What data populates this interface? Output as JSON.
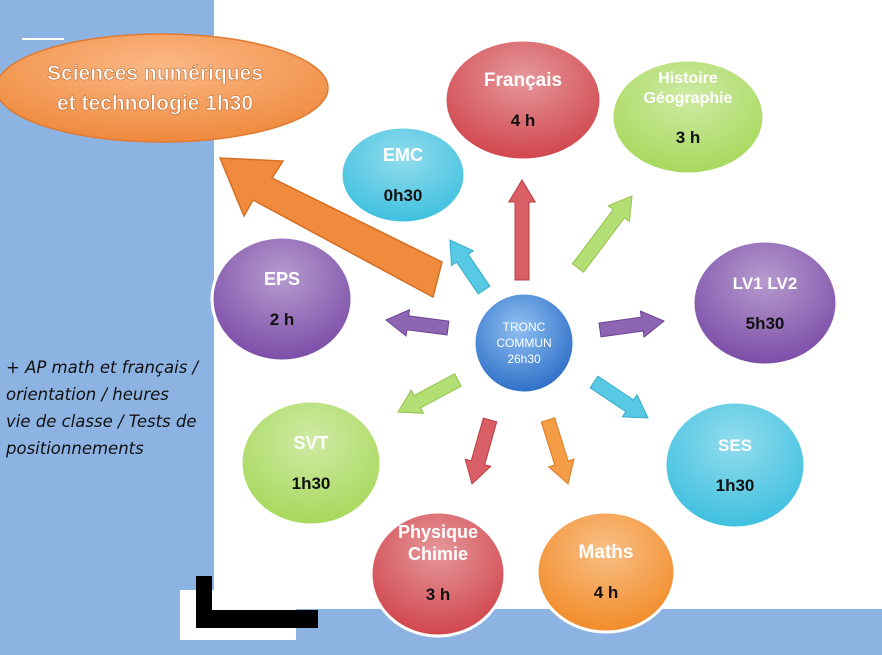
{
  "callout": {
    "line1": "Sciences numériques",
    "line2": "et technologie 1h30"
  },
  "center": {
    "line1": "TRONC",
    "line2": "COMMUN",
    "line3": "26h30"
  },
  "subjects": [
    {
      "id": "francais",
      "name_lines": [
        "Français"
      ],
      "hours": "4 h",
      "color": "#d0434a"
    },
    {
      "id": "histoire-geographie",
      "name_lines": [
        "Histoire",
        "Géographie"
      ],
      "hours": "3 h",
      "color": "#a6d85a"
    },
    {
      "id": "lv1-lv2",
      "name_lines": [
        "LV1 LV2"
      ],
      "hours": "5h30",
      "color": "#7a4aa6"
    },
    {
      "id": "ses",
      "name_lines": [
        "SES"
      ],
      "hours": "1h30",
      "color": "#3bbfdf"
    },
    {
      "id": "maths",
      "name_lines": [
        "Maths"
      ],
      "hours": "4 h",
      "color": "#f28a25"
    },
    {
      "id": "physique-chimie",
      "name_lines": [
        "Physique",
        "Chimie"
      ],
      "hours": "3 h",
      "color": "#d0434a"
    },
    {
      "id": "svt",
      "name_lines": [
        "SVT"
      ],
      "hours": "1h30",
      "color": "#a6d85a"
    },
    {
      "id": "eps",
      "name_lines": [
        "EPS"
      ],
      "hours": "2 h",
      "color": "#7a4aa6"
    },
    {
      "id": "emc",
      "name_lines": [
        "EMC"
      ],
      "hours": "0h30",
      "color": "#3bbfdf"
    }
  ],
  "side_note": "+ AP math et français /\norientation / heures\nvie de classe / Tests de\npositionnements",
  "colors": {
    "panel": "#8db3e2",
    "callout": "#f5a05c",
    "callout_arrow": "#f08a3c",
    "center": "#4a86d8"
  }
}
